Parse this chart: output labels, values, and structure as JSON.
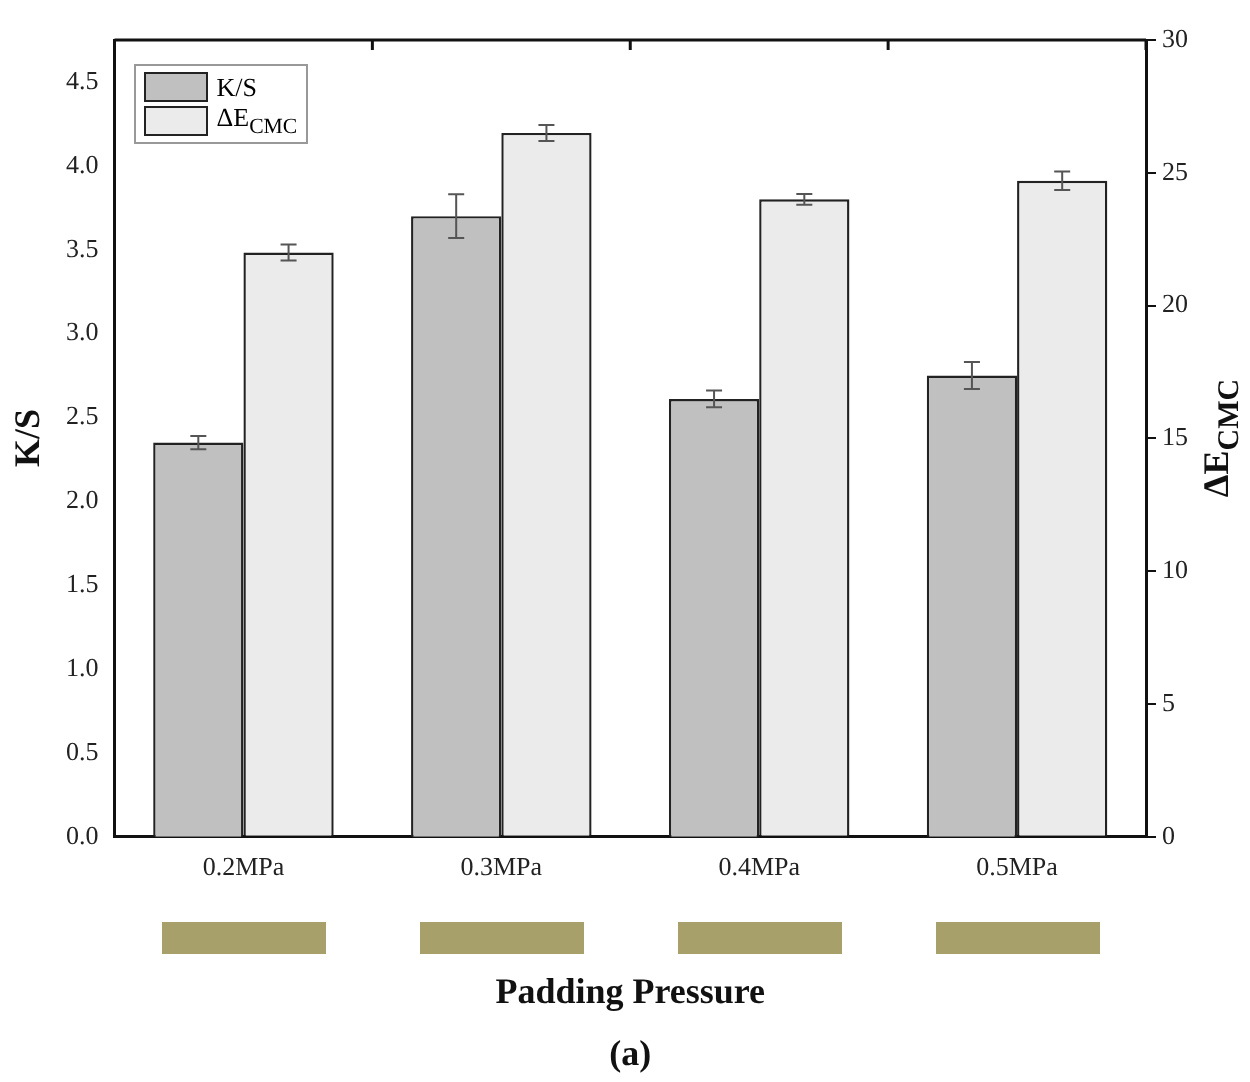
{
  "chart_data": {
    "type": "bar",
    "xlabel": "Padding Pressure",
    "ylabel": "K/S",
    "y2label": "ΔE$_{CMC}$",
    "categories": [
      "0.2MPa",
      "0.3MPa",
      "0.4MPa",
      "0.5MPa"
    ],
    "series": [
      {
        "name": "K/S",
        "color": "#c0c0c0",
        "values": [
          2.35,
          3.7,
          2.61,
          2.75
        ],
        "errors": [
          0.04,
          0.13,
          0.05,
          0.08
        ]
      },
      {
        "name": "ΔE$_{CMC}$",
        "color": "#ebebeb",
        "axis": "y2",
        "values": [
          22.0,
          26.5,
          24.0,
          24.7
        ],
        "errors": [
          0.3,
          0.3,
          0.2,
          0.35
        ]
      }
    ],
    "ylim": [
      0,
      4.75
    ],
    "yticks": [
      {
        "value": 0,
        "label": "0.0"
      },
      0.5,
      {
        "value": 1,
        "label": "1.0"
      },
      1.5,
      {
        "value": 2,
        "label": "2.0"
      },
      2.5,
      {
        "value": 3,
        "label": "3.0"
      },
      3.5,
      {
        "value": 4,
        "label": "4.0"
      },
      4.5
    ],
    "y2lim": [
      0,
      30
    ],
    "y2ticks": [
      0,
      5,
      10,
      15,
      20,
      25,
      30
    ],
    "grid": false,
    "legend": "top left",
    "annotations": [
      "(a)"
    ]
  }
}
